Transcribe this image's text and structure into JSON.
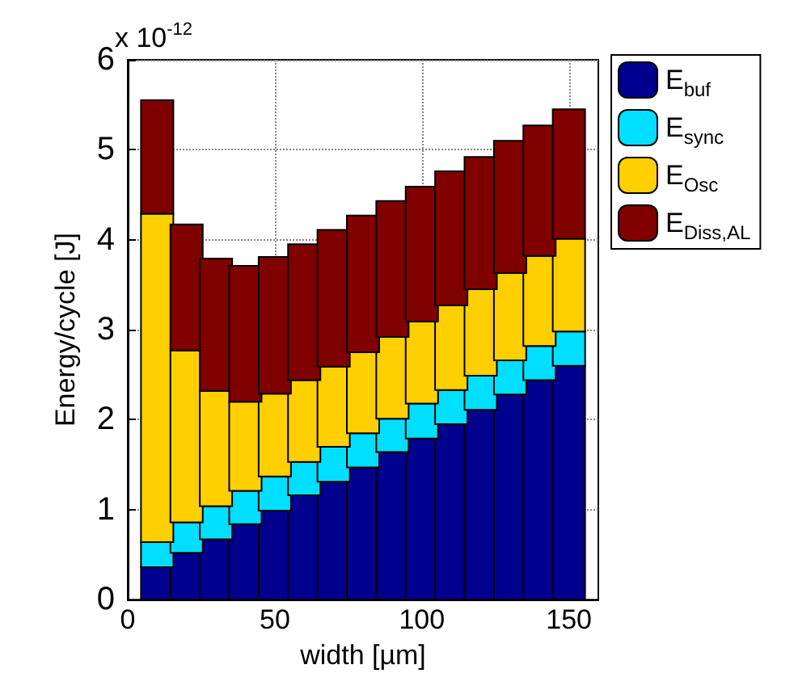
{
  "chart_data": {
    "type": "bar",
    "stacked": true,
    "xlabel": "width [µm]",
    "ylabel": "Energy/cycle [J]",
    "annotations": [
      "x 10$^{-12}$"
    ],
    "x": [
      10,
      20,
      30,
      40,
      50,
      60,
      70,
      80,
      90,
      100,
      110,
      120,
      130,
      140,
      150
    ],
    "series": [
      {
        "name": "E$_{buf}$",
        "color": "#00008f",
        "values": [
          0.36,
          0.52,
          0.67,
          0.84,
          0.99,
          1.16,
          1.31,
          1.47,
          1.64,
          1.79,
          1.95,
          2.11,
          2.28,
          2.44,
          2.6
        ]
      },
      {
        "name": "E$_{sync}$",
        "color": "#00dfff",
        "values": [
          0.28,
          0.34,
          0.37,
          0.37,
          0.38,
          0.37,
          0.39,
          0.38,
          0.37,
          0.39,
          0.38,
          0.38,
          0.38,
          0.38,
          0.38
        ]
      },
      {
        "name": "E$_{Osc}$",
        "color": "#ffcf00",
        "values": [
          3.65,
          1.91,
          1.28,
          0.99,
          0.92,
          0.91,
          0.89,
          0.9,
          0.91,
          0.91,
          0.94,
          0.96,
          0.97,
          1.0,
          1.03
        ]
      },
      {
        "name": "E$_{Diss,AL}$",
        "color": "#800000",
        "values": [
          1.26,
          1.4,
          1.47,
          1.51,
          1.52,
          1.51,
          1.52,
          1.52,
          1.51,
          1.5,
          1.49,
          1.47,
          1.47,
          1.45,
          1.44
        ]
      }
    ],
    "xlim": [
      0,
      160
    ],
    "xticks": [
      0,
      50,
      100,
      150
    ],
    "ylim": [
      0,
      6
    ],
    "yticks": [
      0,
      1,
      2,
      3,
      4,
      5,
      6
    ],
    "grid": true,
    "legend": "top right"
  }
}
